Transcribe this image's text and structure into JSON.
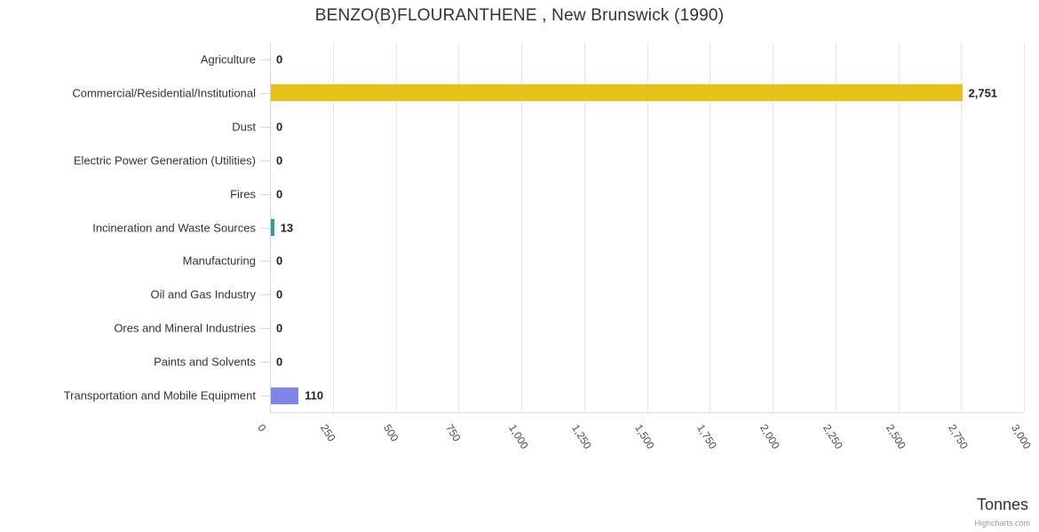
{
  "chart_data": {
    "type": "bar",
    "title": "BENZO(B)FLOURANTHENE , New Brunswick (1990)",
    "categories": [
      "Agriculture",
      "Commercial/Residential/Institutional",
      "Dust",
      "Electric Power Generation (Utilities)",
      "Fires",
      "Incineration and Waste Sources",
      "Manufacturing",
      "Oil and Gas Industry",
      "Ores and Mineral Industries",
      "Paints and Solvents",
      "Transportation and Mobile Equipment"
    ],
    "values": [
      0,
      2751,
      0,
      0,
      0,
      13,
      0,
      0,
      0,
      0,
      110
    ],
    "value_labels": [
      "0",
      "2,751",
      "0",
      "0",
      "0",
      "13",
      "0",
      "0",
      "0",
      "0",
      "110"
    ],
    "bar_colors": [
      null,
      "#e8c218",
      null,
      null,
      null,
      "#2f9e96",
      null,
      null,
      null,
      null,
      "#8085e9"
    ],
    "xlabel": "Tonnes",
    "x_axis": {
      "min": 0,
      "max": 3000,
      "tick_interval": 250,
      "tick_labels": [
        "0",
        "250",
        "500",
        "750",
        "1,000",
        "1,250",
        "1,500",
        "1,750",
        "2,000",
        "2,250",
        "2,500",
        "2,750",
        "3,000"
      ]
    },
    "grid": true,
    "legend": "none",
    "orientation": "horizontal",
    "colors": {
      "grid_line": "#e6e6e6",
      "axis_line": "#ccd6eb",
      "title_text": "#333333",
      "label_text": "#333333",
      "data_label_text": "#222222"
    },
    "credit": "Highcharts.com"
  }
}
